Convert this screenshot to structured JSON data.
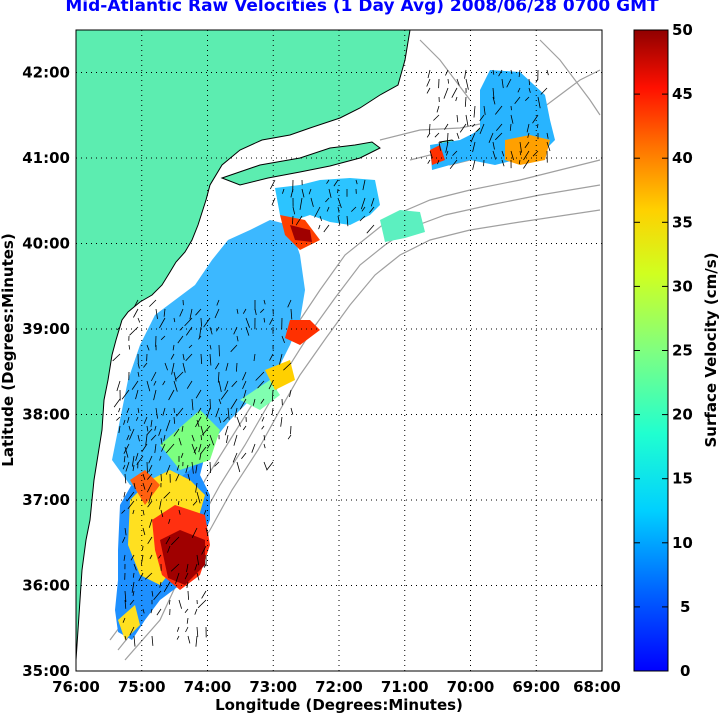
{
  "chart_data": {
    "type": "heatmap",
    "title": "Mid-Atlantic Raw Velocities (1 Day Avg) 2008/06/28 0700 GMT",
    "xlabel": "Longitude (Degrees:Minutes)",
    "ylabel": "Latitude (Degrees:Minutes)",
    "x_ticks": [
      "76:00",
      "75:00",
      "74:00",
      "73:00",
      "72:00",
      "71:00",
      "70:00",
      "69:00",
      "68:00"
    ],
    "x_values": [
      -76,
      -75,
      -74,
      -73,
      -72,
      -71,
      -70,
      -69,
      -68
    ],
    "y_ticks": [
      "35:00",
      "36:00",
      "37:00",
      "38:00",
      "39:00",
      "40:00",
      "41:00",
      "42:00"
    ],
    "y_values": [
      35,
      36,
      37,
      38,
      39,
      40,
      41,
      42
    ],
    "xlim": [
      -76,
      -68
    ],
    "ylim": [
      35,
      42.5
    ],
    "grid": true,
    "colorbar": {
      "label": "Surface Velocity (cm/s)",
      "ticks": [
        "0",
        "5",
        "10",
        "15",
        "20",
        "25",
        "30",
        "35",
        "40",
        "45",
        "50"
      ],
      "range": [
        0,
        50
      ],
      "colormap": "jet"
    },
    "colors": {
      "land": "#5cedb0",
      "title": "#0000ff",
      "coast_outline": "#000000",
      "bathymetry": "#a0a0a0"
    }
  }
}
